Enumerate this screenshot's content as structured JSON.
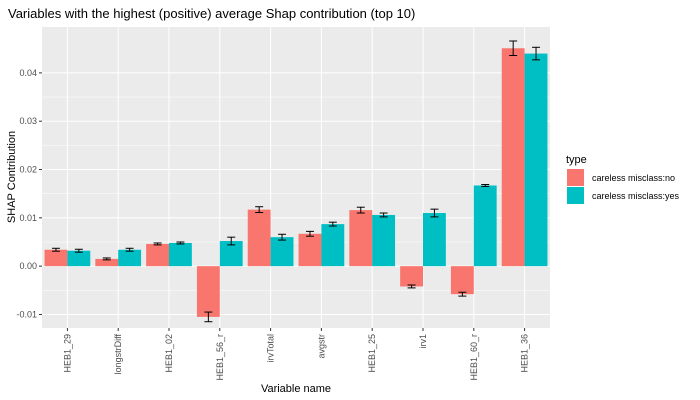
{
  "chart_data": {
    "type": "bar",
    "title": "Variables with the highest (positive) average Shap contribution (top 10)",
    "xlabel": "Variable name",
    "ylabel": "SHAP Contribution",
    "categories": [
      "HEB1_29",
      "longstrDiff",
      "HEB1_02",
      "HEB1_56_r",
      "irvTotal",
      "avgstr",
      "HEB1_25",
      "irv1",
      "HEB1_60_r",
      "HEB1_36"
    ],
    "ylim": [
      -0.0128,
      0.0495
    ],
    "yticks": [
      -0.01,
      0.0,
      0.01,
      0.02,
      0.03,
      0.04
    ],
    "ytick_labels": [
      "-0.01",
      "0.00",
      "0.01",
      "0.02",
      "0.03",
      "0.04"
    ],
    "grid": true,
    "legend": {
      "title": "type",
      "position": "right"
    },
    "series": [
      {
        "name": "careless misclass:no",
        "color": "#F8766D",
        "values": [
          0.0034,
          0.0015,
          0.0046,
          -0.0105,
          0.0117,
          0.0067,
          0.0116,
          -0.0042,
          -0.0058,
          0.0451
        ],
        "errors": [
          0.0003,
          0.0002,
          0.0002,
          0.001,
          0.0006,
          0.0005,
          0.0006,
          0.0003,
          0.0004,
          0.0015
        ]
      },
      {
        "name": "careless misclass:yes",
        "color": "#00BFC4",
        "values": [
          0.0032,
          0.0034,
          0.0048,
          0.0052,
          0.006,
          0.0087,
          0.0106,
          0.011,
          0.0167,
          0.044
        ],
        "errors": [
          0.0003,
          0.0003,
          0.0002,
          0.0008,
          0.0006,
          0.0004,
          0.0004,
          0.0008,
          0.0002,
          0.0013
        ]
      }
    ]
  }
}
